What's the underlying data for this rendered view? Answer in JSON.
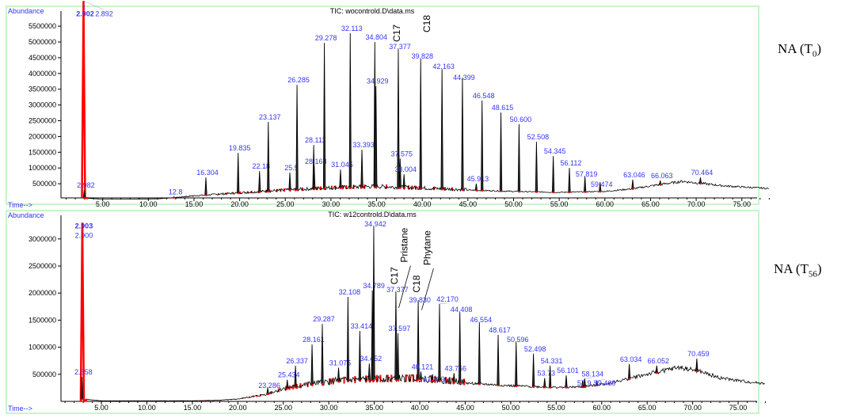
{
  "chart_data": [
    {
      "type": "line",
      "title": "TIC: wocontrold.D\\data.ms",
      "ylabel": "Abundance",
      "xlabel": "Time-->",
      "side_label": {
        "text": "NA (T",
        "sub": "0",
        "close": ")"
      },
      "xlim": [
        0.4,
        78
      ],
      "ylim": [
        0,
        6200000
      ],
      "xticks": [
        "5.00",
        "10.00",
        "15.00",
        "20.00",
        "25.00",
        "30.00",
        "35.00",
        "40.00",
        "45.00",
        "50.00",
        "55.00",
        "60.00",
        "65.00",
        "70.00",
        "75.00"
      ],
      "yticks": [
        "500000",
        "1000000",
        "1500000",
        "2000000",
        "2500000",
        "3000000",
        "3500000",
        "4000000",
        "4500000",
        "5000000",
        "5500000"
      ],
      "solvent_peak": {
        "rt": 2.902,
        "abundance": 6300000,
        "label": "2.902",
        "label2": "2.892"
      },
      "baseline": [
        [
          3.2,
          40000
        ],
        [
          5,
          10000
        ],
        [
          11,
          20000
        ],
        [
          13,
          60000
        ],
        [
          15,
          110000
        ],
        [
          20,
          200000
        ],
        [
          25,
          280000
        ],
        [
          30,
          350000
        ],
        [
          35,
          390000
        ],
        [
          38,
          360000
        ],
        [
          42,
          320000
        ],
        [
          45,
          290000
        ],
        [
          50,
          250000
        ],
        [
          55,
          220000
        ],
        [
          60,
          250000
        ],
        [
          63,
          330000
        ],
        [
          66,
          460000
        ],
        [
          68.5,
          560000
        ],
        [
          70.5,
          500000
        ],
        [
          73,
          420000
        ],
        [
          76,
          370000
        ],
        [
          78,
          340000
        ]
      ],
      "peaks": [
        {
          "rt": 2.982,
          "abundance": 300000,
          "label": "2.982"
        },
        {
          "rt": 12.8,
          "abundance": 90000,
          "label": "12.8"
        },
        {
          "rt": 16.304,
          "abundance": 700000,
          "label": "16.304"
        },
        {
          "rt": 19.835,
          "abundance": 1480000,
          "label": "19.835"
        },
        {
          "rt": 22.18,
          "abundance": 900000,
          "label": "22.18"
        },
        {
          "rt": 23.137,
          "abundance": 2460000,
          "label": "23.137"
        },
        {
          "rt": 25.5,
          "abundance": 850000,
          "label": "25.5"
        },
        {
          "rt": 26.285,
          "abundance": 3640000,
          "label": "26.285"
        },
        {
          "rt": 28.111,
          "abundance": 1730000,
          "label": "28.111"
        },
        {
          "rt": 28.163,
          "abundance": 1050000,
          "label": "28.163"
        },
        {
          "rt": 29.278,
          "abundance": 4970000,
          "label": "29.278"
        },
        {
          "rt": 31.045,
          "abundance": 950000,
          "label": "31.045"
        },
        {
          "rt": 32.113,
          "abundance": 5280000,
          "label": "32.113"
        },
        {
          "rt": 33.393,
          "abundance": 1580000,
          "label": "33.393"
        },
        {
          "rt": 34.804,
          "abundance": 5000000,
          "label": "34.804"
        },
        {
          "rt": 34.929,
          "abundance": 3600000,
          "label": "34.929"
        },
        {
          "rt": 37.377,
          "abundance": 4770000,
          "label": "37.377"
        },
        {
          "rt": 37.575,
          "abundance": 1300000,
          "label": "37.575"
        },
        {
          "rt": 38.004,
          "abundance": 800000,
          "label": "38.004"
        },
        {
          "rt": 39.828,
          "abundance": 4470000,
          "label": "39.828"
        },
        {
          "rt": 42.163,
          "abundance": 4140000,
          "label": "42.163"
        },
        {
          "rt": 44.399,
          "abundance": 3870000,
          "label": "44.399"
        },
        {
          "rt": 45.913,
          "abundance": 500000,
          "label": "45.913"
        },
        {
          "rt": 46.548,
          "abundance": 3140000,
          "label": "46.548"
        },
        {
          "rt": 48.615,
          "abundance": 2760000,
          "label": "48.615"
        },
        {
          "rt": 50.6,
          "abundance": 2390000,
          "label": "50.600"
        },
        {
          "rt": 52.508,
          "abundance": 1830000,
          "label": "52.508"
        },
        {
          "rt": 54.345,
          "abundance": 1380000,
          "label": "54.345"
        },
        {
          "rt": 56.112,
          "abundance": 1000000,
          "label": "56.112"
        },
        {
          "rt": 57.819,
          "abundance": 730000,
          "label": "57.819"
        },
        {
          "rt": 59.474,
          "abundance": 550000,
          "label": "59.474"
        },
        {
          "rt": 63.046,
          "abundance": 630000,
          "label": "63.046"
        },
        {
          "rt": 66.063,
          "abundance": 600000,
          "label": "66.063"
        },
        {
          "rt": 70.464,
          "abundance": 700000,
          "label": "70.464"
        }
      ],
      "annotations": [
        {
          "text": "C17",
          "rt": 37.377,
          "abundance": 4900000
        },
        {
          "text": "C18",
          "rt": 39.828,
          "abundance": 4850000
        }
      ]
    },
    {
      "type": "line",
      "title": "TIC: w12controld.D\\data.ms",
      "ylabel": "Abundance",
      "xlabel": "Time-->",
      "side_label": {
        "text": "NA (T",
        "sub": "56",
        "close": ")"
      },
      "xlim": [
        0.4,
        78
      ],
      "ylim": [
        0,
        3400000
      ],
      "xticks": [
        "5.00",
        "10.00",
        "15.00",
        "20.00",
        "25.00",
        "30.00",
        "35.00",
        "40.00",
        "45.00",
        "50.00",
        "55.00",
        "60.00",
        "65.00",
        "70.00",
        "75.00"
      ],
      "yticks": [
        "500000",
        "1000000",
        "1500000",
        "2000000",
        "2500000",
        "3000000"
      ],
      "solvent_peak": {
        "rt": 2.903,
        "abundance": 3300000,
        "label": "2.903",
        "label2": "2.900"
      },
      "baseline": [
        [
          3.2,
          40000
        ],
        [
          5,
          10000
        ],
        [
          15,
          10000
        ],
        [
          18,
          20000
        ],
        [
          20,
          40000
        ],
        [
          23,
          120000
        ],
        [
          25,
          220000
        ],
        [
          28,
          300000
        ],
        [
          31,
          360000
        ],
        [
          35,
          390000
        ],
        [
          40,
          400000
        ],
        [
          45,
          330000
        ],
        [
          50,
          280000
        ],
        [
          55,
          250000
        ],
        [
          58,
          260000
        ],
        [
          61,
          330000
        ],
        [
          64,
          450000
        ],
        [
          68.5,
          610000
        ],
        [
          70.5,
          550000
        ],
        [
          73,
          420000
        ],
        [
          76,
          350000
        ],
        [
          78,
          320000
        ]
      ],
      "peaks": [
        {
          "rt": 2.858,
          "abundance": 450000,
          "label": "2.858"
        },
        {
          "rt": 23.286,
          "abundance": 250000,
          "label": "23.286"
        },
        {
          "rt": 25.434,
          "abundance": 400000,
          "label": "25.434"
        },
        {
          "rt": 26.337,
          "abundance": 660000,
          "label": "26.337"
        },
        {
          "rt": 28.161,
          "abundance": 1050000,
          "label": "28.161"
        },
        {
          "rt": 29.287,
          "abundance": 1430000,
          "label": "29.287"
        },
        {
          "rt": 31.075,
          "abundance": 620000,
          "label": "31.075"
        },
        {
          "rt": 32.108,
          "abundance": 1930000,
          "label": "32.108"
        },
        {
          "rt": 33.414,
          "abundance": 1300000,
          "label": "33.414"
        },
        {
          "rt": 34.452,
          "abundance": 700000,
          "label": "34.452"
        },
        {
          "rt": 34.789,
          "abundance": 2050000,
          "label": "34.789"
        },
        {
          "rt": 34.942,
          "abundance": 3230000,
          "label": "34.942"
        },
        {
          "rt": 37.377,
          "abundance": 2020000,
          "label": "37.377"
        },
        {
          "rt": 37.597,
          "abundance": 1260000,
          "label": "37.597"
        },
        {
          "rt": 39.83,
          "abundance": 1870000,
          "label": "39.830"
        },
        {
          "rt": 40.121,
          "abundance": 550000,
          "label": "40.121"
        },
        {
          "rt": 41.389,
          "abundance": 500000,
          "label": "41.389"
        },
        {
          "rt": 42.17,
          "abundance": 1800000,
          "label": "42.170"
        },
        {
          "rt": 43.766,
          "abundance": 520000,
          "label": "43.766"
        },
        {
          "rt": 44.408,
          "abundance": 1650000,
          "label": "44.408"
        },
        {
          "rt": 46.554,
          "abundance": 1460000,
          "label": "46.554"
        },
        {
          "rt": 48.617,
          "abundance": 1230000,
          "label": "48.617"
        },
        {
          "rt": 50.596,
          "abundance": 1100000,
          "label": "50.596"
        },
        {
          "rt": 52.498,
          "abundance": 880000,
          "label": "52.498"
        },
        {
          "rt": 53.73,
          "abundance": 430000,
          "label": "53.73"
        },
        {
          "rt": 54.331,
          "abundance": 660000,
          "label": "54.331"
        },
        {
          "rt": 56.101,
          "abundance": 480000,
          "label": "56.101"
        },
        {
          "rt": 57.9,
          "abundance": 380000,
          "label": "57.9"
        },
        {
          "rt": 58.134,
          "abundance": 420000,
          "label": "58.134"
        },
        {
          "rt": 59.469,
          "abundance": 380000,
          "label": "59.469"
        },
        {
          "rt": 63.034,
          "abundance": 690000,
          "label": "63.034"
        },
        {
          "rt": 66.052,
          "abundance": 660000,
          "label": "66.052"
        },
        {
          "rt": 70.459,
          "abundance": 790000,
          "label": "70.459"
        }
      ],
      "annotations": [
        {
          "text": "C17",
          "rt": 37.377,
          "abundance": 2100000
        },
        {
          "text": "Pristane",
          "rt": 37.597,
          "abundance": 2300000
        },
        {
          "text": "C18",
          "rt": 39.83,
          "abundance": 1950000
        },
        {
          "text": "Phytane",
          "rt": 40.121,
          "abundance": 2250000
        }
      ]
    }
  ],
  "colors": {
    "trace": "#000000",
    "solvent": "#ff0000",
    "integration": "#ff0000",
    "peak_label": "#3333ff",
    "frame": "#90ee90",
    "axis_label": "#3333ff"
  }
}
